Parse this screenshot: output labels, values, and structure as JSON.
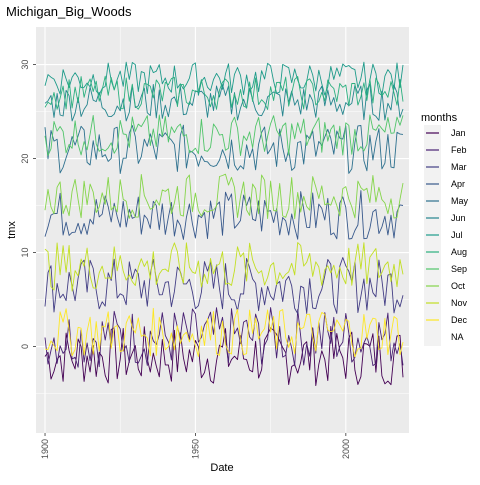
{
  "chart_data": {
    "type": "line",
    "title": "Michigan_Big_Woods",
    "xlabel": "Date",
    "ylabel": "tmx",
    "x_range": [
      1900,
      2019
    ],
    "xlim": [
      1897,
      2021
    ],
    "ylim": [
      -9.2,
      34.0
    ],
    "x_ticks": [
      1900,
      1950,
      2000
    ],
    "y_ticks": [
      0,
      10,
      20,
      30
    ],
    "grid": true,
    "legend_title": "months",
    "legend_position": "right",
    "series": [
      {
        "name": "Jan",
        "color": "#440154",
        "mean": -1.0,
        "amp": 3.2
      },
      {
        "name": "Feb",
        "color": "#482173",
        "mean": 1.0,
        "amp": 3.2
      },
      {
        "name": "Mar",
        "color": "#433E85",
        "mean": 6.5,
        "amp": 3.0
      },
      {
        "name": "Apr",
        "color": "#38598C",
        "mean": 14.0,
        "amp": 2.6
      },
      {
        "name": "May",
        "color": "#2D708E",
        "mean": 21.0,
        "amp": 2.6
      },
      {
        "name": "Jun",
        "color": "#25858E",
        "mean": 26.0,
        "amp": 2.0
      },
      {
        "name": "Jul",
        "color": "#1E9B8A",
        "mean": 28.5,
        "amp": 1.8
      },
      {
        "name": "Aug",
        "color": "#2BB07F",
        "mean": 27.0,
        "amp": 1.8
      },
      {
        "name": "Sep",
        "color": "#51C56A",
        "mean": 22.5,
        "amp": 2.2
      },
      {
        "name": "Oct",
        "color": "#85D54A",
        "mean": 16.0,
        "amp": 2.4
      },
      {
        "name": "Nov",
        "color": "#C2DF23",
        "mean": 8.5,
        "amp": 2.6
      },
      {
        "name": "Dec",
        "color": "#FDE725",
        "mean": 1.5,
        "amp": 2.6
      },
      {
        "name": "NA",
        "color": "#ebebeb",
        "mean": null,
        "amp": null
      }
    ]
  }
}
